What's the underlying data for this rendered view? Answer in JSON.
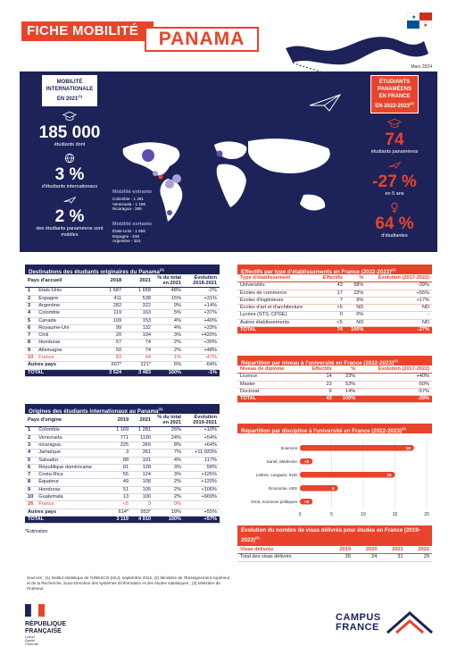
{
  "header": {
    "title": "FICHE MOBILITÉ",
    "country": "PANAMA",
    "date": "Mars 2024"
  },
  "left_stats": {
    "badge": [
      "MOBILITÉ",
      "INTERNATIONALE",
      "EN 2021"
    ],
    "badge_sup": "(1)",
    "students": "185 000",
    "students_label": "étudiants dont",
    "intl_pct": "3 %",
    "intl_label": "d'étudiants internationaux",
    "mobile_pct": "2 %",
    "mobile_label": "des étudiants panaméens sont mobiles"
  },
  "map": {
    "inbound_title": "Mobilité entrante",
    "inbound": [
      "Colombie - 1 281",
      "Venezuela - 1 190",
      "Nicaragua - 369"
    ],
    "outbound_title": "Mobilité sortante",
    "outbound": [
      "États-Unis - 1 658",
      "Espagne - 538",
      "Argentine - 322"
    ]
  },
  "right_stats": {
    "badge": [
      "ÉTUDIANTS",
      "PANAMÉENS",
      "EN FRANCE",
      "EN 2022-2023"
    ],
    "badge_sup": "(2)",
    "count": "74",
    "count_label": "étudiants panaméens",
    "change": "-27 %",
    "change_label": "en 5 ans",
    "female": "64 %",
    "female_label": "d'étudiantes"
  },
  "dest_table": {
    "title": "Destinations des étudiants originaires du Panama",
    "sup": "(1)",
    "headers": [
      "Pays d'accueil",
      "2018",
      "2021",
      "% du total en 2021",
      "Évolution 2018-2021"
    ],
    "rows": [
      [
        "1",
        "États-Unis",
        "1 687",
        "1 658",
        "48%",
        "-2%"
      ],
      [
        "2",
        "Espagne",
        "411",
        "538",
        "15%",
        "+31%"
      ],
      [
        "3",
        "Argentine",
        "282",
        "322",
        "9%",
        "+14%"
      ],
      [
        "4",
        "Colombie",
        "119",
        "163",
        "5%",
        "+37%"
      ],
      [
        "5",
        "Canada",
        "109",
        "153",
        "4%",
        "+40%"
      ],
      [
        "6",
        "Royaume-Uni",
        "99",
        "132",
        "4%",
        "+33%"
      ],
      [
        "7",
        "Chili",
        "20",
        "104",
        "3%",
        "+420%"
      ],
      [
        "8",
        "Honduras",
        "57",
        "74",
        "2%",
        "+30%"
      ],
      [
        "9",
        "Allemagne",
        "50",
        "74",
        "2%",
        "+48%"
      ],
      [
        "10",
        "France",
        "83",
        "44",
        "1%",
        "-47%"
      ]
    ],
    "other": [
      "Autres pays",
      "607*",
      "221*",
      "6%",
      "-64%"
    ],
    "total": [
      "TOTAL",
      "3 524",
      "3 483",
      "100%",
      "-1%"
    ]
  },
  "orig_table": {
    "title": "Origines des étudiants internationaux au Panama",
    "sup": "(1)",
    "headers": [
      "Pays d'origine",
      "2019",
      "2021",
      "% du total en 2021",
      "Évolution 2019-2021"
    ],
    "rows": [
      [
        "1",
        "Colombie",
        "1 169",
        "1 281",
        "26%",
        "+10%"
      ],
      [
        "2",
        "Venezuela",
        "771",
        "1190",
        "24%",
        "+54%"
      ],
      [
        "3",
        "nicaragua",
        "225",
        "369",
        "8%",
        "+64%"
      ],
      [
        "4",
        "Jamaïque",
        "3",
        "361",
        "7%",
        "+11 933%"
      ],
      [
        "5",
        "Salvador",
        "88",
        "191",
        "4%",
        "117%"
      ],
      [
        "6",
        "République dominicaine",
        "81",
        "128",
        "3%",
        "58%"
      ],
      [
        "7",
        "Costa Rica",
        "55",
        "124",
        "3%",
        "+125%"
      ],
      [
        "8",
        "Équateur",
        "49",
        "108",
        "2%",
        "+120%"
      ],
      [
        "9",
        "Honduras",
        "51",
        "105",
        "2%",
        "+106%"
      ],
      [
        "10",
        "Guatemala",
        "13",
        "100",
        "2%",
        "+669%"
      ],
      [
        "26",
        "France",
        "<5",
        "9",
        "0%",
        ""
      ]
    ],
    "other": [
      "Autres pays",
      "614*",
      "953*",
      "19%",
      "+55%"
    ],
    "total": [
      "TOTAL",
      "3 119",
      "4 910",
      "100%",
      "+57%"
    ],
    "note": "*Estimation"
  },
  "etab_table": {
    "title": "Effectifs par type d'établissements en France (2022-2023)",
    "sup": "(2)",
    "headers": [
      "Type d'établissement",
      "Effectifs",
      "%",
      "Évolution (2017-2022)"
    ],
    "rows": [
      [
        "Universités",
        "43",
        "58%",
        "-39%"
      ],
      [
        "Écoles de commerce",
        "17",
        "23%",
        "+55%"
      ],
      [
        "Écoles d'ingénieurs",
        "7",
        "9%",
        "+17%"
      ],
      [
        "Écoles d'art et d'architecture",
        "<5",
        "ND",
        "ND"
      ],
      [
        "Lycées (STS, CPGE)",
        "0",
        "0%",
        "-"
      ],
      [
        "Autres établissements",
        "<5",
        "ND",
        "ND"
      ]
    ],
    "total": [
      "TOTAL",
      "74",
      "100%",
      "-27%"
    ]
  },
  "niveau_table": {
    "title": "Répartition par niveau à l'université en France (2022-2023)",
    "sup": "(2)",
    "headers": [
      "Niveau de diplôme",
      "Effectifs",
      "%",
      "Évolution (2017-2022)"
    ],
    "rows": [
      [
        "Licence",
        "14",
        "33%",
        "+40%"
      ],
      [
        "Master",
        "23",
        "53%",
        "-50%"
      ],
      [
        "Doctorat",
        "6",
        "14%",
        "-57%"
      ]
    ],
    "total": [
      "TOTAL",
      "43",
      "100%",
      "-39%"
    ]
  },
  "chart_data": {
    "type": "bar",
    "title": "Répartition par discipline à l'université en France (2022-2023)",
    "title_sup": "(2)",
    "categories": [
      "Sciences",
      "Santé, Médecine",
      "Lettres, Langues, SHS",
      "Économie, AES",
      "Droit, Sciences politiques"
    ],
    "values": [
      18,
      null,
      15,
      6,
      null
    ],
    "value_labels": [
      "18",
      "<5",
      "15",
      "6",
      "<5"
    ],
    "display_values": [
      18,
      2,
      15,
      6,
      2
    ],
    "xlim": [
      0,
      20
    ],
    "xticks": [
      "0",
      "5",
      "10",
      "15",
      "20"
    ],
    "color": "#e8442b",
    "grid": true
  },
  "visa_table": {
    "title": "Évolution du nombre de visas délivrés pour études en France (2019-2022)",
    "sup": "(4)",
    "headers": [
      "Visas délivrés",
      "2019",
      "2020",
      "2021",
      "2022"
    ],
    "row": [
      "Total des visas délivrés",
      "26",
      "24",
      "31",
      "29"
    ]
  },
  "footer": {
    "sources": "Sources : (1) Institut statistique de l'UNESCO (ISU), septembre 2022, (2) Ministère de l'Enseignement supérieur et de la Recherche, Sous-Direction des systèmes d'information et des études statistiques ; (3) Ministère de l'Intérieur.",
    "rf": [
      "RÉPUBLIQUE",
      "FRANÇAISE"
    ],
    "rf_motto": [
      "Liberté",
      "Égalité",
      "Fraternité"
    ],
    "cf": [
      "CAMPUS",
      "FRANCE"
    ]
  },
  "colors": {
    "navy": "#1d2358",
    "red": "#e8442b"
  }
}
